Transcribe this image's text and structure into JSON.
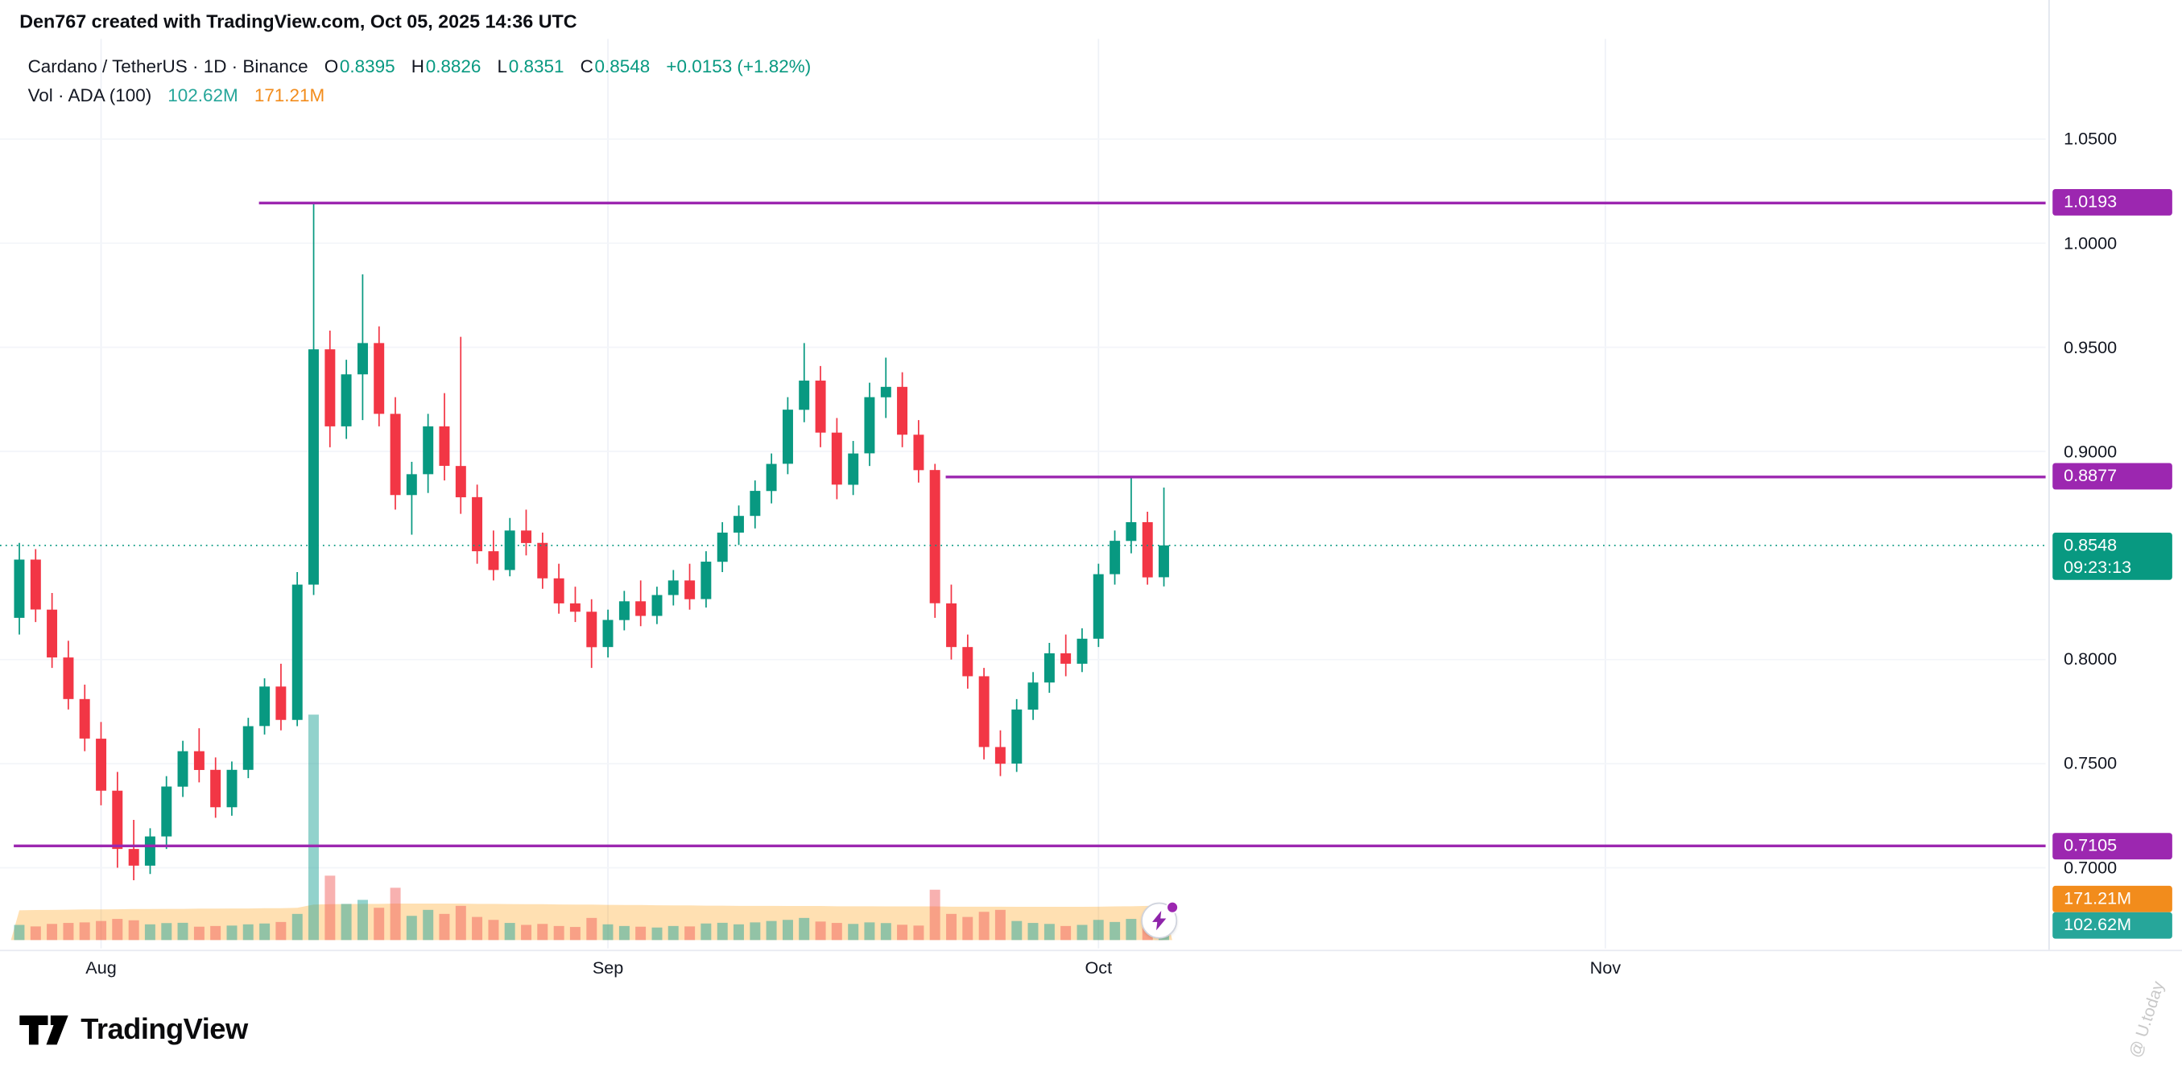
{
  "page": {
    "creator_caption": "Den767 created with TradingView.com, Oct 05, 2025 14:36 UTC",
    "watermark": "@ U.today"
  },
  "legend": {
    "series_title": "Cardano / TetherUS · 1D · Binance",
    "ohlc": [
      {
        "k": "O",
        "v": "0.8395"
      },
      {
        "k": "H",
        "v": "0.8826"
      },
      {
        "k": "L",
        "v": "0.8351"
      },
      {
        "k": "C",
        "v": "0.8548"
      }
    ],
    "change": "+0.0153 (+1.82%)",
    "vol_label": "Vol · ADA (100)",
    "vol_current": "102.62M",
    "vol_ma": "171.21M"
  },
  "footer": {
    "brand": "TradingView"
  },
  "chart_data": {
    "type": "candlestick",
    "title": "Cardano / TetherUS · 1D · Binance",
    "interval": "1D",
    "exchange": "Binance",
    "start_date": "2025-07-27",
    "candle_format": [
      "open",
      "high",
      "low",
      "close",
      "volume_millions"
    ],
    "candles": [
      [
        0.82,
        0.856,
        0.812,
        0.848,
        75
      ],
      [
        0.848,
        0.853,
        0.818,
        0.824,
        68
      ],
      [
        0.824,
        0.832,
        0.796,
        0.801,
        80
      ],
      [
        0.801,
        0.809,
        0.776,
        0.781,
        85
      ],
      [
        0.781,
        0.788,
        0.756,
        0.762,
        88
      ],
      [
        0.762,
        0.77,
        0.73,
        0.737,
        95
      ],
      [
        0.737,
        0.746,
        0.7,
        0.709,
        105
      ],
      [
        0.709,
        0.723,
        0.694,
        0.701,
        98
      ],
      [
        0.701,
        0.719,
        0.697,
        0.715,
        78
      ],
      [
        0.715,
        0.744,
        0.709,
        0.739,
        84
      ],
      [
        0.739,
        0.761,
        0.734,
        0.756,
        86
      ],
      [
        0.756,
        0.767,
        0.741,
        0.747,
        66
      ],
      [
        0.747,
        0.753,
        0.724,
        0.729,
        70
      ],
      [
        0.729,
        0.751,
        0.725,
        0.747,
        72
      ],
      [
        0.747,
        0.772,
        0.743,
        0.768,
        78
      ],
      [
        0.768,
        0.791,
        0.764,
        0.787,
        82
      ],
      [
        0.787,
        0.798,
        0.766,
        0.771,
        90
      ],
      [
        0.771,
        0.842,
        0.768,
        0.836,
        130
      ],
      [
        0.836,
        1.0193,
        0.831,
        0.949,
        1120
      ],
      [
        0.949,
        0.958,
        0.902,
        0.912,
        320
      ],
      [
        0.912,
        0.944,
        0.906,
        0.937,
        180
      ],
      [
        0.937,
        0.985,
        0.915,
        0.952,
        200
      ],
      [
        0.952,
        0.96,
        0.912,
        0.918,
        160
      ],
      [
        0.918,
        0.926,
        0.872,
        0.879,
        260
      ],
      [
        0.879,
        0.895,
        0.86,
        0.889,
        120
      ],
      [
        0.889,
        0.918,
        0.88,
        0.912,
        150
      ],
      [
        0.912,
        0.928,
        0.886,
        0.893,
        130
      ],
      [
        0.893,
        0.955,
        0.87,
        0.878,
        170
      ],
      [
        0.878,
        0.884,
        0.846,
        0.852,
        115
      ],
      [
        0.852,
        0.862,
        0.838,
        0.843,
        100
      ],
      [
        0.843,
        0.868,
        0.84,
        0.862,
        85
      ],
      [
        0.862,
        0.872,
        0.85,
        0.856,
        75
      ],
      [
        0.856,
        0.861,
        0.834,
        0.839,
        80
      ],
      [
        0.839,
        0.846,
        0.822,
        0.827,
        70
      ],
      [
        0.827,
        0.835,
        0.818,
        0.823,
        65
      ],
      [
        0.823,
        0.829,
        0.796,
        0.806,
        110
      ],
      [
        0.806,
        0.824,
        0.801,
        0.819,
        78
      ],
      [
        0.819,
        0.833,
        0.814,
        0.828,
        70
      ],
      [
        0.828,
        0.838,
        0.816,
        0.821,
        66
      ],
      [
        0.821,
        0.835,
        0.817,
        0.831,
        62
      ],
      [
        0.831,
        0.843,
        0.826,
        0.838,
        70
      ],
      [
        0.838,
        0.846,
        0.824,
        0.829,
        68
      ],
      [
        0.829,
        0.852,
        0.825,
        0.847,
        82
      ],
      [
        0.847,
        0.866,
        0.842,
        0.861,
        86
      ],
      [
        0.861,
        0.874,
        0.855,
        0.869,
        78
      ],
      [
        0.869,
        0.886,
        0.863,
        0.881,
        88
      ],
      [
        0.881,
        0.899,
        0.875,
        0.894,
        95
      ],
      [
        0.894,
        0.926,
        0.889,
        0.92,
        100
      ],
      [
        0.92,
        0.952,
        0.914,
        0.934,
        110
      ],
      [
        0.934,
        0.941,
        0.902,
        0.909,
        92
      ],
      [
        0.909,
        0.916,
        0.877,
        0.884,
        85
      ],
      [
        0.884,
        0.905,
        0.879,
        0.899,
        80
      ],
      [
        0.899,
        0.933,
        0.893,
        0.926,
        88
      ],
      [
        0.926,
        0.945,
        0.916,
        0.931,
        84
      ],
      [
        0.931,
        0.938,
        0.902,
        0.908,
        76
      ],
      [
        0.908,
        0.915,
        0.885,
        0.891,
        72
      ],
      [
        0.891,
        0.894,
        0.82,
        0.827,
        250
      ],
      [
        0.827,
        0.836,
        0.8,
        0.806,
        130
      ],
      [
        0.806,
        0.812,
        0.786,
        0.792,
        115
      ],
      [
        0.792,
        0.796,
        0.752,
        0.758,
        140
      ],
      [
        0.758,
        0.766,
        0.744,
        0.75,
        150
      ],
      [
        0.75,
        0.781,
        0.746,
        0.776,
        95
      ],
      [
        0.776,
        0.794,
        0.771,
        0.789,
        85
      ],
      [
        0.789,
        0.808,
        0.784,
        0.803,
        80
      ],
      [
        0.803,
        0.812,
        0.792,
        0.798,
        70
      ],
      [
        0.798,
        0.815,
        0.794,
        0.81,
        75
      ],
      [
        0.81,
        0.846,
        0.806,
        0.841,
        100
      ],
      [
        0.841,
        0.862,
        0.836,
        0.857,
        90
      ],
      [
        0.857,
        0.8877,
        0.851,
        0.866,
        105
      ],
      [
        0.866,
        0.871,
        0.836,
        0.8395,
        85
      ],
      [
        0.8395,
        0.8826,
        0.8351,
        0.8548,
        102.62
      ]
    ],
    "vol_ma_100_millions": [
      148,
      149,
      150,
      151,
      152,
      152,
      153,
      154,
      154,
      155,
      155,
      156,
      156,
      157,
      157,
      158,
      158,
      160,
      176,
      178,
      179,
      180,
      180,
      181,
      181,
      181,
      181,
      181,
      180,
      180,
      179,
      178,
      178,
      177,
      176,
      176,
      175,
      174,
      174,
      173,
      172,
      172,
      171,
      171,
      170,
      170,
      170,
      169,
      169,
      169,
      168,
      168,
      168,
      167,
      167,
      167,
      167,
      166,
      166,
      166,
      166,
      165,
      165,
      165,
      165,
      165,
      166,
      167,
      168,
      170,
      171.21
    ],
    "horizontal_levels": [
      {
        "label": "1.0193",
        "price": 1.0193,
        "start_index": 15,
        "color": "#9c27b0"
      },
      {
        "label": "0.8877",
        "price": 0.8877,
        "start_index": 57,
        "color": "#9c27b0"
      },
      {
        "label": "0.7105",
        "price": 0.7105,
        "start_index": 0,
        "color": "#9c27b0"
      }
    ],
    "current_price": {
      "value": 0.8548,
      "label": "0.8548",
      "countdown": "09:23:13",
      "color": "#089981"
    },
    "volume_labels": {
      "ma": {
        "label": "171.21M",
        "value": 171.21,
        "color": "#f28c1c"
      },
      "current": {
        "label": "102.62M",
        "value": 102.62,
        "color": "#26a69a"
      }
    },
    "price_ticks": [
      {
        "label": "1.0500",
        "price": 1.05
      },
      {
        "label": "1.0000",
        "price": 1.0
      },
      {
        "label": "0.9500",
        "price": 0.95
      },
      {
        "label": "0.9000",
        "price": 0.9
      },
      {
        "label": "0.8000",
        "price": 0.8
      },
      {
        "label": "0.7500",
        "price": 0.75
      },
      {
        "label": "0.7000",
        "price": 0.7
      }
    ],
    "time_ticks": [
      {
        "label": "Aug",
        "index": 5
      },
      {
        "label": "Sep",
        "index": 36
      },
      {
        "label": "Oct",
        "index": 66
      },
      {
        "label": "Nov",
        "index": 97
      }
    ],
    "colors": {
      "up": "#089981",
      "down": "#f23645",
      "vol_up": "rgba(38,166,154,0.5)",
      "vol_down": "rgba(239,83,80,0.45)",
      "vol_ma_fill": "rgba(255,152,0,0.30)",
      "level": "#9c27b0"
    }
  }
}
